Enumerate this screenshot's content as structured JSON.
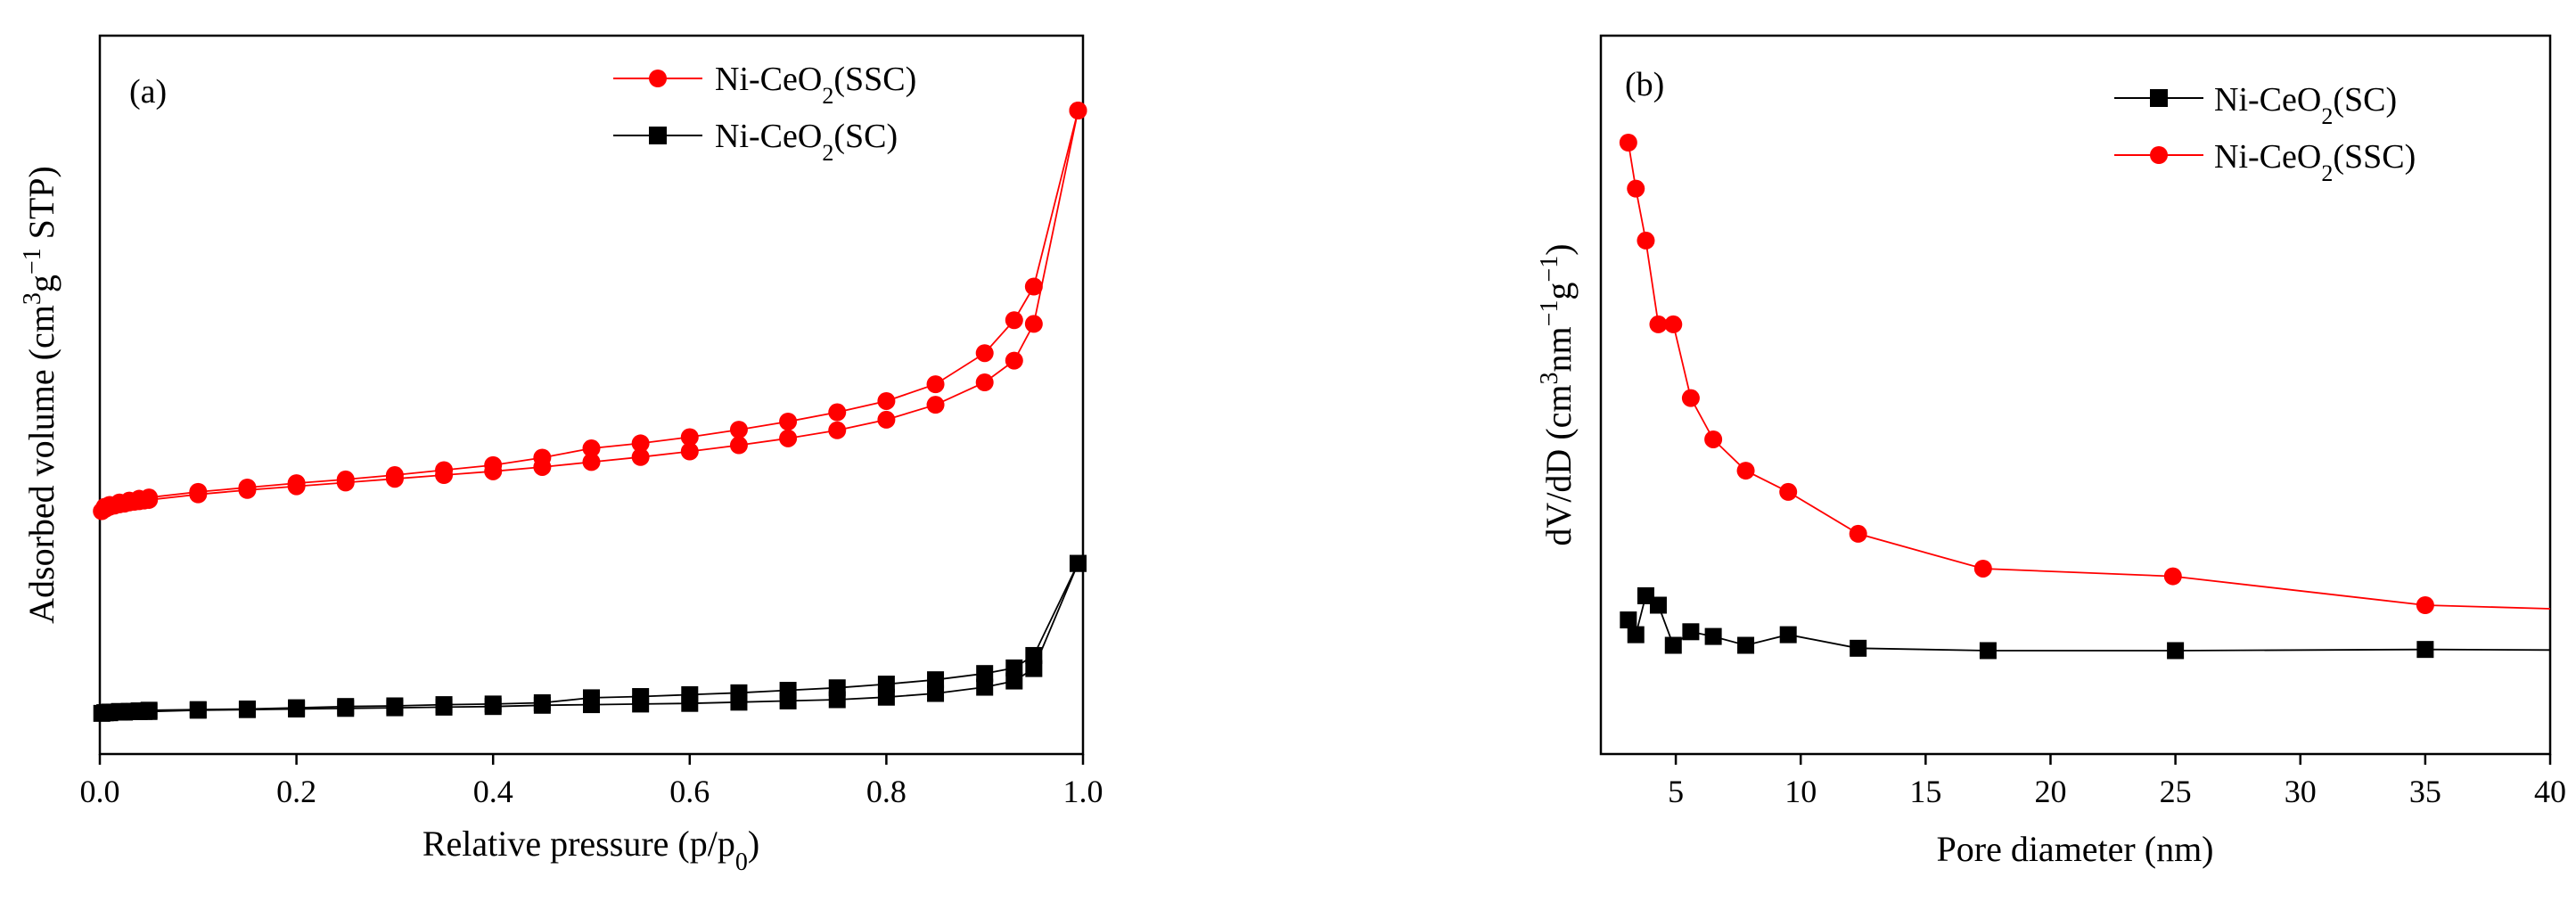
{
  "chart_data": [
    {
      "type": "line",
      "panel_label": "(a)",
      "xlabel": "Relative pressure (p/p",
      "xlabel_sub": "0",
      "xlabel_end": ")",
      "ylabel_pre": "Adsorbed volume (cm",
      "ylabel_sup1": "3",
      "ylabel_mid": "g",
      "ylabel_sup2": "−1",
      "ylabel_end": " STP)",
      "xlim": [
        0,
        1
      ],
      "ylim": [
        0,
        1
      ],
      "yticks_shown": false,
      "xticks": [
        "0.0",
        "0.2",
        "0.4",
        "0.6",
        "0.8",
        "1.0"
      ],
      "xtick_values": [
        0,
        0.2,
        0.4,
        0.6,
        0.8,
        1.0
      ],
      "legend": [
        {
          "name_pre": "Ni-CeO",
          "name_sub": "2",
          "name_end": "(SSC)",
          "color": "#ff0000",
          "marker": "circle"
        },
        {
          "name_pre": "Ni-CeO",
          "name_sub": "2",
          "name_end": "(SC)",
          "color": "#000000",
          "marker": "square"
        }
      ],
      "series": [
        {
          "name": "Ni-CeO2(SSC) adsorption",
          "color": "#ff0000",
          "marker": "circle",
          "x": [
            0.002,
            0.006,
            0.01,
            0.015,
            0.02,
            0.025,
            0.03,
            0.035,
            0.04,
            0.045,
            0.05,
            0.1,
            0.15,
            0.2,
            0.25,
            0.3,
            0.35,
            0.4,
            0.45,
            0.5,
            0.55,
            0.6,
            0.65,
            0.7,
            0.75,
            0.8,
            0.85,
            0.9,
            0.93,
            0.95,
            0.995
          ],
          "y": [
            0.356,
            0.36,
            0.363,
            0.365,
            0.367,
            0.368,
            0.37,
            0.371,
            0.372,
            0.373,
            0.374,
            0.383,
            0.39,
            0.396,
            0.402,
            0.408,
            0.414,
            0.42,
            0.427,
            0.435,
            0.443,
            0.452,
            0.462,
            0.473,
            0.486,
            0.503,
            0.527,
            0.563,
            0.598,
            0.657,
            1.0
          ]
        },
        {
          "name": "Ni-CeO2(SSC) desorption",
          "color": "#ff0000",
          "marker": "circle",
          "x": [
            0.995,
            0.95,
            0.93,
            0.9,
            0.85,
            0.8,
            0.75,
            0.7,
            0.65,
            0.6,
            0.55,
            0.5,
            0.45,
            0.4,
            0.35,
            0.3,
            0.25,
            0.2,
            0.15,
            0.1,
            0.05,
            0.04,
            0.03,
            0.02,
            0.01,
            0.005
          ],
          "y": [
            1.0,
            0.717,
            0.663,
            0.61,
            0.56,
            0.533,
            0.515,
            0.5,
            0.487,
            0.475,
            0.465,
            0.457,
            0.442,
            0.43,
            0.422,
            0.414,
            0.407,
            0.401,
            0.394,
            0.387,
            0.378,
            0.376,
            0.373,
            0.37,
            0.366,
            0.363
          ]
        },
        {
          "name": "Ni-CeO2(SC) adsorption",
          "color": "#000000",
          "marker": "square",
          "x": [
            0.002,
            0.006,
            0.01,
            0.015,
            0.02,
            0.025,
            0.03,
            0.035,
            0.04,
            0.045,
            0.05,
            0.1,
            0.15,
            0.2,
            0.25,
            0.3,
            0.35,
            0.4,
            0.45,
            0.5,
            0.55,
            0.6,
            0.65,
            0.7,
            0.75,
            0.8,
            0.85,
            0.9,
            0.93,
            0.95,
            0.995
          ],
          "y": [
            0.031,
            0.032,
            0.032,
            0.033,
            0.033,
            0.033,
            0.034,
            0.034,
            0.034,
            0.034,
            0.034,
            0.036,
            0.037,
            0.038,
            0.039,
            0.04,
            0.041,
            0.042,
            0.044,
            0.045,
            0.046,
            0.047,
            0.049,
            0.051,
            0.053,
            0.057,
            0.063,
            0.073,
            0.083,
            0.103,
            0.272
          ]
        },
        {
          "name": "Ni-CeO2(SC) desorption",
          "color": "#000000",
          "marker": "square",
          "x": [
            0.995,
            0.95,
            0.93,
            0.9,
            0.85,
            0.8,
            0.75,
            0.7,
            0.65,
            0.6,
            0.55,
            0.5,
            0.45,
            0.4,
            0.35,
            0.3,
            0.25,
            0.2,
            0.15,
            0.1,
            0.05,
            0.04,
            0.03,
            0.02,
            0.01,
            0.005
          ],
          "y": [
            0.272,
            0.124,
            0.104,
            0.095,
            0.085,
            0.078,
            0.072,
            0.068,
            0.064,
            0.061,
            0.058,
            0.056,
            0.048,
            0.046,
            0.045,
            0.043,
            0.042,
            0.04,
            0.038,
            0.037,
            0.036,
            0.035,
            0.034,
            0.034,
            0.033,
            0.032
          ]
        }
      ]
    },
    {
      "type": "line",
      "panel_label": "(b)",
      "xlabel": "Pore diameter (nm)",
      "ylabel_pre": "dV/dD (cm",
      "ylabel_sup1": "3",
      "ylabel_mid": "nm",
      "ylabel_sup2": "−1",
      "ylabel_mid2": "g",
      "ylabel_sup3": "−1",
      "ylabel_end": ")",
      "xlim": [
        2,
        40
      ],
      "ylim": [
        0,
        1
      ],
      "yticks_shown": false,
      "xticks": [
        "5",
        "10",
        "15",
        "20",
        "25",
        "30",
        "35",
        "40"
      ],
      "xtick_values": [
        5,
        10,
        15,
        20,
        25,
        30,
        35,
        40
      ],
      "legend": [
        {
          "name_pre": "Ni-CeO",
          "name_sub": "2",
          "name_end": "(SC)",
          "color": "#000000",
          "marker": "square"
        },
        {
          "name_pre": "Ni-CeO",
          "name_sub": "2",
          "name_end": "(SSC)",
          "color": "#ff0000",
          "marker": "circle"
        }
      ],
      "series": [
        {
          "name": "Ni-CeO2(SC)",
          "color": "#000000",
          "marker": "square",
          "x": [
            3.1,
            3.4,
            3.8,
            4.3,
            4.9,
            5.6,
            6.5,
            7.8,
            9.5,
            12.3,
            17.5,
            25.0,
            35.0,
            40.0
          ],
          "y": [
            0.191,
            0.166,
            0.232,
            0.216,
            0.148,
            0.171,
            0.163,
            0.148,
            0.166,
            0.143,
            0.139,
            0.139,
            0.141,
            0.14
          ]
        },
        {
          "name": "Ni-CeO2(SSC)",
          "color": "#ff0000",
          "marker": "circle",
          "x": [
            3.1,
            3.4,
            3.8,
            4.3,
            4.9,
            5.6,
            6.5,
            7.8,
            9.5,
            12.3,
            17.3,
            24.9,
            35.0,
            40.0
          ],
          "y": [
            1.0,
            0.922,
            0.834,
            0.692,
            0.692,
            0.567,
            0.497,
            0.444,
            0.408,
            0.337,
            0.278,
            0.265,
            0.216,
            0.21
          ]
        }
      ]
    }
  ]
}
